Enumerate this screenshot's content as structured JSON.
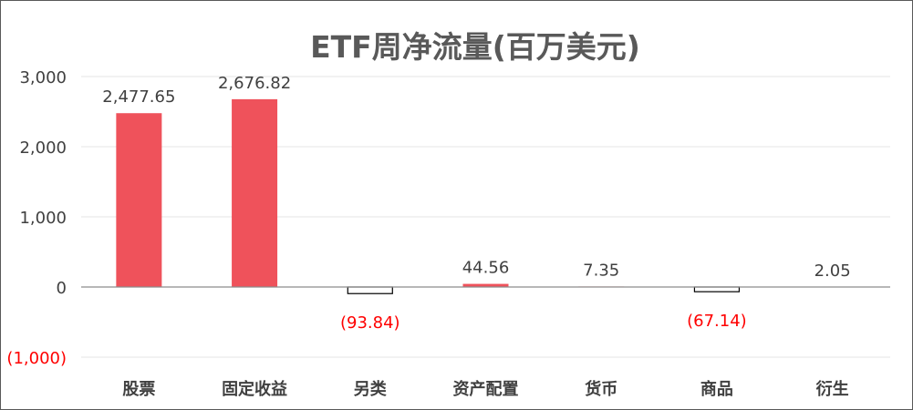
{
  "chart_data": {
    "type": "bar",
    "title": "ETF周净流量(百万美元)",
    "categories": [
      "股票",
      "固定收益",
      "另类",
      "资产配置",
      "货币",
      "商品",
      "衍生"
    ],
    "values": [
      2477.65,
      2676.82,
      -93.84,
      44.56,
      7.35,
      -67.14,
      2.05
    ],
    "data_labels": [
      "2,477.65",
      "2,676.82",
      "(93.84)",
      "44.56",
      "7.35",
      "(67.14)",
      "2.05"
    ],
    "ylim": [
      -1000,
      3000
    ],
    "yticks": [
      3000,
      2000,
      1000,
      0,
      -1000
    ],
    "ytick_labels": [
      "3,000",
      "2,000",
      "1,000",
      "0",
      "(1,000)"
    ],
    "grid": true,
    "legend": "none",
    "colors": {
      "positive": "#EF525B",
      "negative_fill": "#FFFFFF",
      "negative_border": "#000000",
      "negative_label": "#FF0000",
      "label": "#404040"
    }
  }
}
